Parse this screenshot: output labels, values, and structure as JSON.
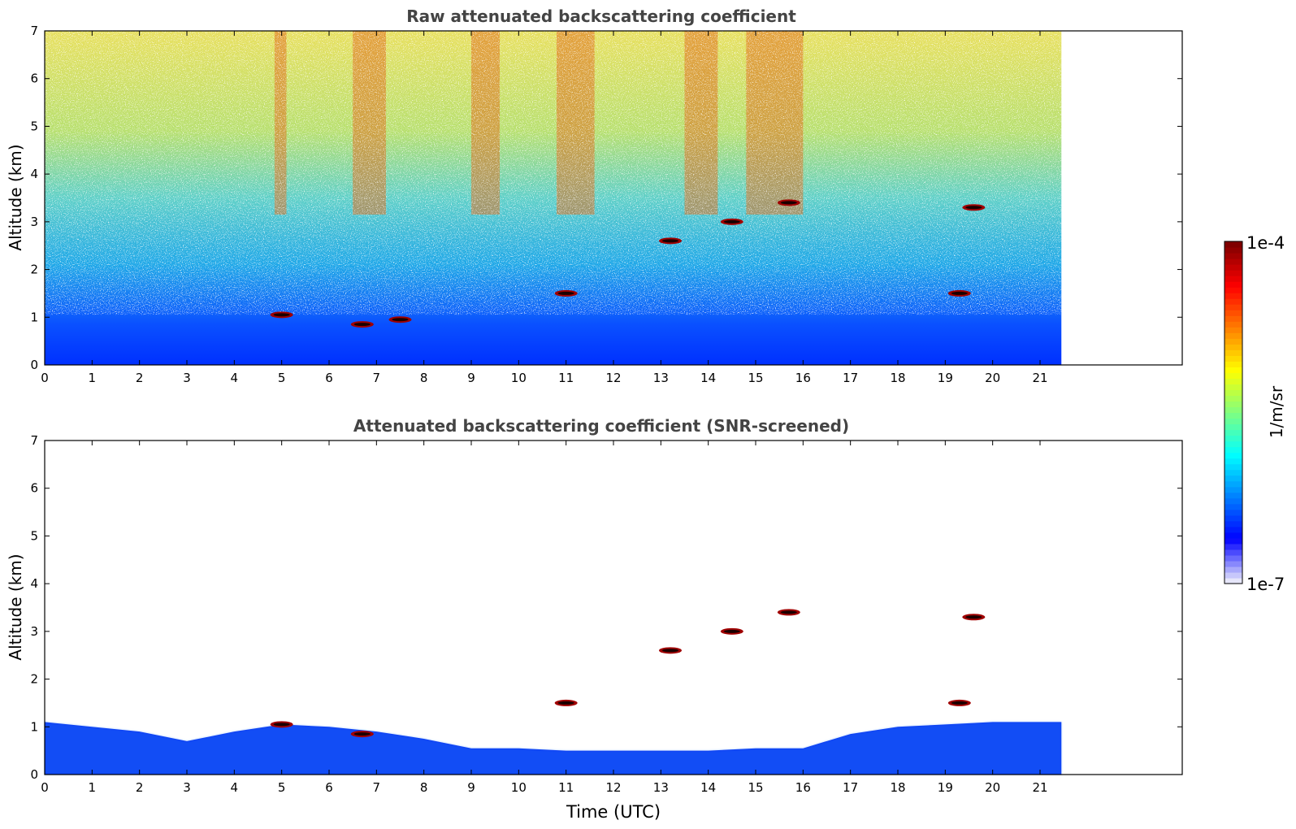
{
  "chart_data": [
    {
      "type": "heatmap",
      "title": "Raw attenuated backscattering coefficient",
      "xlabel": "",
      "ylabel": "Altitude (km)",
      "xlim": [
        0,
        24
      ],
      "ylim": [
        0,
        7
      ],
      "xticks": [
        "0",
        "1",
        "2",
        "3",
        "4",
        "5",
        "6",
        "7",
        "8",
        "9",
        "10",
        "11",
        "12",
        "13",
        "14",
        "15",
        "16",
        "17",
        "18",
        "19",
        "20",
        "21"
      ],
      "yticks": [
        "0",
        "1",
        "2",
        "3",
        "4",
        "5",
        "6",
        "7"
      ],
      "data_extent_hours": [
        0,
        21.45
      ],
      "rain_streaks_hours": [
        [
          4.85,
          5.1
        ],
        [
          6.5,
          7.2
        ],
        [
          9.0,
          9.6
        ],
        [
          10.8,
          11.6
        ],
        [
          13.5,
          14.2
        ],
        [
          14.8,
          16.0
        ]
      ],
      "cloud_features": [
        {
          "t": 5.0,
          "alt_km": 1.05
        },
        {
          "t": 6.7,
          "alt_km": 0.85
        },
        {
          "t": 7.5,
          "alt_km": 0.95
        },
        {
          "t": 11.0,
          "alt_km": 1.5
        },
        {
          "t": 13.2,
          "alt_km": 2.6
        },
        {
          "t": 14.5,
          "alt_km": 3.0
        },
        {
          "t": 15.7,
          "alt_km": 3.4
        },
        {
          "t": 19.6,
          "alt_km": 3.3
        },
        {
          "t": 19.3,
          "alt_km": 1.5
        }
      ]
    },
    {
      "type": "heatmap",
      "title": "Attenuated backscattering coefficient (SNR-screened)",
      "xlabel": "Time (UTC)",
      "ylabel": "Altitude (km)",
      "xlim": [
        0,
        24
      ],
      "ylim": [
        0,
        7
      ],
      "xticks": [
        "0",
        "1",
        "2",
        "3",
        "4",
        "5",
        "6",
        "7",
        "8",
        "9",
        "10",
        "11",
        "12",
        "13",
        "14",
        "15",
        "16",
        "17",
        "18",
        "19",
        "20",
        "21"
      ],
      "yticks": [
        "0",
        "1",
        "2",
        "3",
        "4",
        "5",
        "6",
        "7"
      ],
      "data_extent_hours": [
        0,
        21.45
      ],
      "boundary_layer_top_km": [
        [
          0,
          1.1
        ],
        [
          2,
          0.9
        ],
        [
          3,
          0.7
        ],
        [
          4,
          0.9
        ],
        [
          5,
          1.05
        ],
        [
          6,
          1.0
        ],
        [
          7,
          0.9
        ],
        [
          8,
          0.75
        ],
        [
          9,
          0.55
        ],
        [
          10,
          0.55
        ],
        [
          11,
          0.5
        ],
        [
          12,
          0.5
        ],
        [
          13,
          0.5
        ],
        [
          14,
          0.5
        ],
        [
          15,
          0.55
        ],
        [
          16,
          0.55
        ],
        [
          17,
          0.85
        ],
        [
          18,
          1.0
        ],
        [
          19,
          1.05
        ],
        [
          20,
          1.1
        ],
        [
          21.45,
          1.1
        ]
      ],
      "cloud_features": [
        {
          "t": 5.0,
          "alt_km": 1.05
        },
        {
          "t": 6.7,
          "alt_km": 0.85
        },
        {
          "t": 11.0,
          "alt_km": 1.5
        },
        {
          "t": 13.2,
          "alt_km": 2.6
        },
        {
          "t": 14.5,
          "alt_km": 3.0
        },
        {
          "t": 15.7,
          "alt_km": 3.4
        },
        {
          "t": 19.6,
          "alt_km": 3.3
        },
        {
          "t": 19.3,
          "alt_km": 1.5
        }
      ]
    }
  ],
  "colorbar": {
    "label": "1/m/sr",
    "max_label": "1e-4",
    "min_label": "1e-7",
    "scale": "log",
    "colormap": [
      "#e6e6fa",
      "#0000ff",
      "#0080ff",
      "#00ffff",
      "#80ff80",
      "#ffff00",
      "#ff8000",
      "#ff0000",
      "#800000"
    ]
  }
}
